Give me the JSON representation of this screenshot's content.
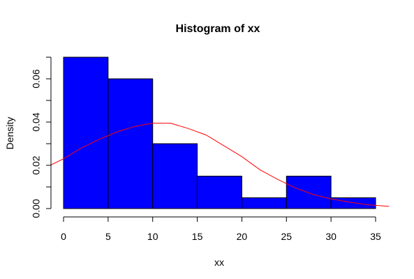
{
  "chart_data": {
    "type": "bar",
    "title": "Histogram of xx",
    "xlabel": "xx",
    "ylabel": "Density",
    "xlim": [
      0,
      35
    ],
    "ylim": [
      0,
      0.07
    ],
    "x_ticks": [
      0,
      5,
      10,
      15,
      20,
      25,
      30,
      35
    ],
    "y_ticks": [
      0.0,
      0.02,
      0.04,
      0.06
    ],
    "y_tick_labels": [
      "0.00",
      "0.02",
      "0.04",
      "0.06"
    ],
    "grid": false,
    "bins": [
      {
        "start": 0,
        "end": 5,
        "density": 0.07
      },
      {
        "start": 5,
        "end": 10,
        "density": 0.06
      },
      {
        "start": 10,
        "end": 15,
        "density": 0.03
      },
      {
        "start": 15,
        "end": 20,
        "density": 0.015
      },
      {
        "start": 20,
        "end": 25,
        "density": 0.005
      },
      {
        "start": 25,
        "end": 30,
        "density": 0.015
      },
      {
        "start": 30,
        "end": 35,
        "density": 0.005
      }
    ],
    "bar_color": "#0000ff",
    "curve": {
      "color": "#ff0000",
      "x": [
        -1.5,
        0,
        2,
        4,
        6,
        8,
        10,
        12,
        14,
        16,
        18,
        20,
        22,
        24,
        26,
        28,
        30,
        32,
        34,
        36.5
      ],
      "y": [
        0.02,
        0.023,
        0.028,
        0.032,
        0.0355,
        0.038,
        0.0395,
        0.0395,
        0.037,
        0.034,
        0.029,
        0.024,
        0.018,
        0.0135,
        0.0095,
        0.0065,
        0.0045,
        0.003,
        0.0018,
        0.001
      ]
    }
  }
}
